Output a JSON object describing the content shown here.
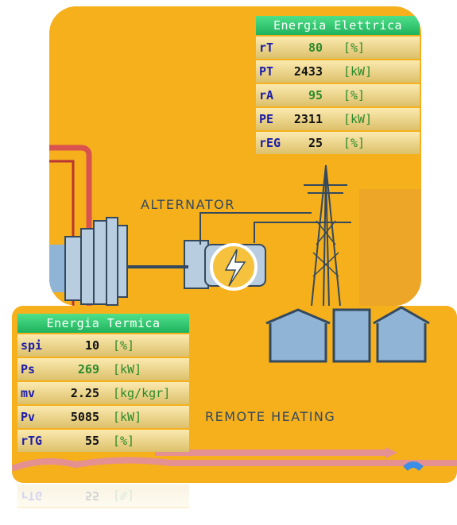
{
  "illustration": {
    "alternator_label": "ALTERNATOR",
    "heating_label": "REMOTE HEATING"
  },
  "electric_table": {
    "title": "Energia Elettrica",
    "rows": [
      {
        "label": "rT",
        "value": "80",
        "unit": "[%]",
        "value_color": "#2b8a2b"
      },
      {
        "label": "PT",
        "value": "2433",
        "unit": "[kW]",
        "value_color": "#111111"
      },
      {
        "label": "rA",
        "value": "95",
        "unit": "[%]",
        "value_color": "#2b8a2b"
      },
      {
        "label": "PE",
        "value": "2311",
        "unit": "[kW]",
        "value_color": "#111111"
      },
      {
        "label": "rEG",
        "value": "25",
        "unit": "[%]",
        "value_color": "#111111"
      }
    ]
  },
  "thermal_table": {
    "title": "Energia Termica",
    "rows": [
      {
        "label": "spi",
        "value": "10",
        "unit": "[%]",
        "value_color": "#111111"
      },
      {
        "label": "Ps",
        "value": "269",
        "unit": "[kW]",
        "value_color": "#2b8a2b"
      },
      {
        "label": "mv",
        "value": "2.25",
        "unit": "[kg/kgr]",
        "value_color": "#111111"
      },
      {
        "label": "Pv",
        "value": "5085",
        "unit": "[kW]",
        "value_color": "#111111"
      },
      {
        "label": "rTG",
        "value": "55",
        "unit": "[%]",
        "value_color": "#111111"
      }
    ]
  }
}
